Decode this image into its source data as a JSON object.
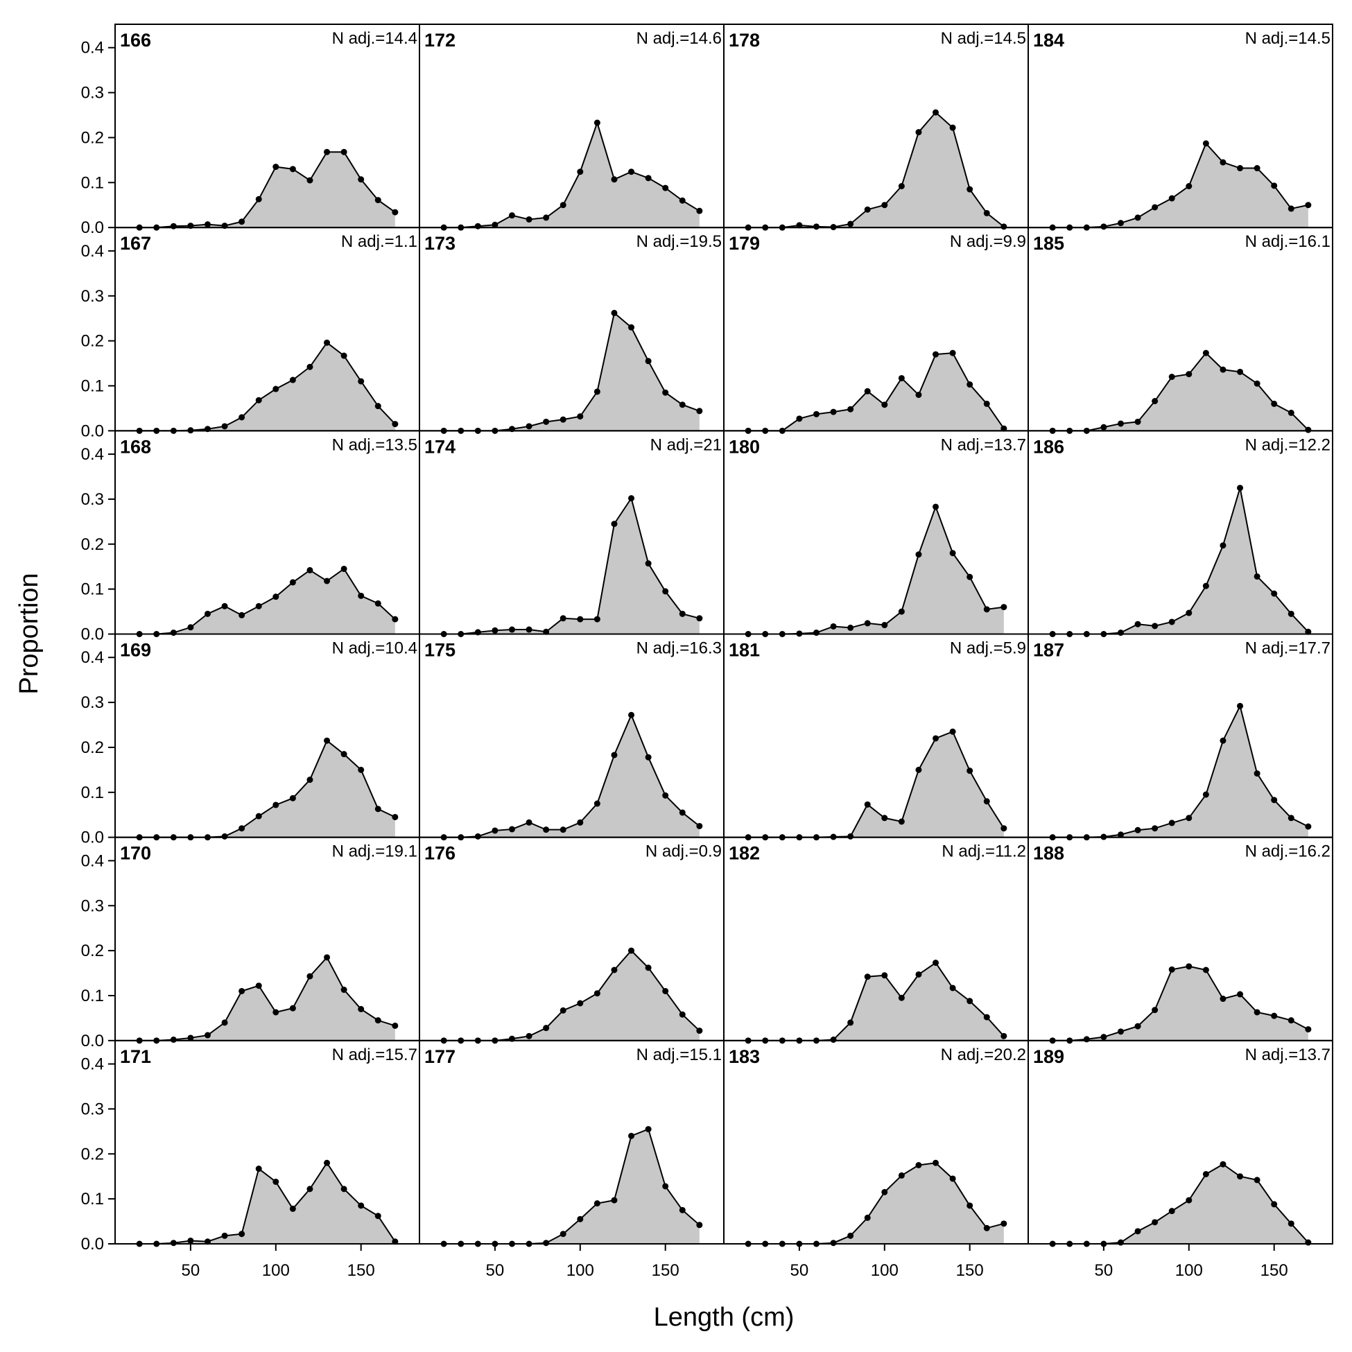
{
  "x_label": "Length (cm)",
  "y_label": "Proportion",
  "chart_data": [
    {
      "type": "area",
      "title": "166",
      "annotation": "N adj.=14.4",
      "x": [
        20,
        30,
        40,
        50,
        60,
        70,
        80,
        90,
        100,
        110,
        120,
        130,
        140,
        150,
        160,
        170
      ],
      "values": [
        0,
        0,
        0.003,
        0.004,
        0.007,
        0.004,
        0.013,
        0.063,
        0.135,
        0.13,
        0.105,
        0.168,
        0.168,
        0.107,
        0.061,
        0.034
      ],
      "xlim": [
        5.7,
        184.3
      ],
      "ylim": [
        0,
        0.452
      ],
      "yticks": [
        {
          "value": 0,
          "label": "0.0"
        },
        0.1,
        0.2,
        0.3,
        0.4
      ]
    },
    {
      "type": "area",
      "title": "167",
      "annotation": "N adj.=1.1",
      "x": [
        20,
        30,
        40,
        50,
        60,
        70,
        80,
        90,
        100,
        110,
        120,
        130,
        140,
        150,
        160,
        170
      ],
      "values": [
        0,
        0,
        0,
        0.001,
        0.004,
        0.01,
        0.03,
        0.068,
        0.093,
        0.113,
        0.142,
        0.196,
        0.167,
        0.11,
        0.055,
        0.015
      ],
      "xlim": [
        5.7,
        184.3
      ],
      "ylim": [
        0,
        0.452
      ],
      "yticks": [
        {
          "value": 0,
          "label": "0.0"
        },
        0.1,
        0.2,
        0.3,
        0.4
      ]
    },
    {
      "type": "area",
      "title": "168",
      "annotation": "N adj.=13.5",
      "x": [
        20,
        30,
        40,
        50,
        60,
        70,
        80,
        90,
        100,
        110,
        120,
        130,
        140,
        150,
        160,
        170
      ],
      "values": [
        0,
        0,
        0.003,
        0.015,
        0.045,
        0.062,
        0.042,
        0.062,
        0.083,
        0.115,
        0.142,
        0.118,
        0.145,
        0.085,
        0.068,
        0.033
      ],
      "xlim": [
        5.7,
        184.3
      ],
      "ylim": [
        0,
        0.452
      ],
      "yticks": [
        {
          "value": 0,
          "label": "0.0"
        },
        0.1,
        0.2,
        0.3,
        0.4
      ]
    },
    {
      "type": "area",
      "title": "169",
      "annotation": "N adj.=10.4",
      "x": [
        20,
        30,
        40,
        50,
        60,
        70,
        80,
        90,
        100,
        110,
        120,
        130,
        140,
        150,
        160,
        170
      ],
      "values": [
        0,
        0,
        0,
        0,
        0,
        0.002,
        0.02,
        0.047,
        0.072,
        0.087,
        0.128,
        0.215,
        0.185,
        0.15,
        0.063,
        0.045
      ],
      "xlim": [
        5.7,
        184.3
      ],
      "ylim": [
        0,
        0.452
      ],
      "yticks": [
        {
          "value": 0,
          "label": "0.0"
        },
        0.1,
        0.2,
        0.3,
        0.4
      ]
    },
    {
      "type": "area",
      "title": "170",
      "annotation": "N adj.=19.1",
      "x": [
        20,
        30,
        40,
        50,
        60,
        70,
        80,
        90,
        100,
        110,
        120,
        130,
        140,
        150,
        160,
        170
      ],
      "values": [
        0,
        0,
        0.002,
        0.006,
        0.012,
        0.04,
        0.11,
        0.122,
        0.063,
        0.072,
        0.143,
        0.185,
        0.113,
        0.07,
        0.045,
        0.033
      ],
      "xlim": [
        5.7,
        184.3
      ],
      "ylim": [
        0,
        0.452
      ],
      "yticks": [
        {
          "value": 0,
          "label": "0.0"
        },
        0.1,
        0.2,
        0.3,
        0.4
      ]
    },
    {
      "type": "area",
      "title": "171",
      "annotation": "N adj.=15.7",
      "x": [
        20,
        30,
        40,
        50,
        60,
        70,
        80,
        90,
        100,
        110,
        120,
        130,
        140,
        150,
        160,
        170
      ],
      "values": [
        0,
        0,
        0.002,
        0.007,
        0.005,
        0.018,
        0.022,
        0.167,
        0.138,
        0.078,
        0.122,
        0.18,
        0.122,
        0.085,
        0.062,
        0.005
      ],
      "xlim": [
        5.7,
        184.3
      ],
      "ylim": [
        0,
        0.452
      ],
      "yticks": [
        {
          "value": 0,
          "label": "0.0"
        },
        0.1,
        0.2,
        0.3,
        0.4
      ],
      "xticks": [
        50,
        100,
        150
      ]
    },
    {
      "type": "area",
      "title": "172",
      "annotation": "N adj.=14.6",
      "x": [
        20,
        30,
        40,
        50,
        60,
        70,
        80,
        90,
        100,
        110,
        120,
        130,
        140,
        150,
        160,
        170
      ],
      "values": [
        0,
        0,
        0.003,
        0.006,
        0.027,
        0.018,
        0.022,
        0.05,
        0.124,
        0.233,
        0.107,
        0.124,
        0.11,
        0.088,
        0.06,
        0.037
      ],
      "xlim": [
        5.7,
        184.3
      ],
      "ylim": [
        0,
        0.452
      ]
    },
    {
      "type": "area",
      "title": "173",
      "annotation": "N adj.=19.5",
      "x": [
        20,
        30,
        40,
        50,
        60,
        70,
        80,
        90,
        100,
        110,
        120,
        130,
        140,
        150,
        160,
        170
      ],
      "values": [
        0,
        0,
        0,
        0,
        0.004,
        0.01,
        0.02,
        0.025,
        0.032,
        0.087,
        0.262,
        0.23,
        0.155,
        0.085,
        0.058,
        0.044
      ],
      "xlim": [
        5.7,
        184.3
      ],
      "ylim": [
        0,
        0.452
      ]
    },
    {
      "type": "area",
      "title": "174",
      "annotation": "N adj.=21",
      "x": [
        20,
        30,
        40,
        50,
        60,
        70,
        80,
        90,
        100,
        110,
        120,
        130,
        140,
        150,
        160,
        170
      ],
      "values": [
        0,
        0,
        0.004,
        0.008,
        0.01,
        0.01,
        0.005,
        0.035,
        0.033,
        0.033,
        0.245,
        0.302,
        0.157,
        0.095,
        0.045,
        0.035
      ],
      "xlim": [
        5.7,
        184.3
      ],
      "ylim": [
        0,
        0.452
      ]
    },
    {
      "type": "area",
      "title": "175",
      "annotation": "N adj.=16.3",
      "x": [
        20,
        30,
        40,
        50,
        60,
        70,
        80,
        90,
        100,
        110,
        120,
        130,
        140,
        150,
        160,
        170
      ],
      "values": [
        0,
        0,
        0.002,
        0.015,
        0.018,
        0.033,
        0.017,
        0.017,
        0.033,
        0.075,
        0.183,
        0.272,
        0.178,
        0.093,
        0.055,
        0.025
      ],
      "xlim": [
        5.7,
        184.3
      ],
      "ylim": [
        0,
        0.452
      ]
    },
    {
      "type": "area",
      "title": "176",
      "annotation": "N adj.=0.9",
      "x": [
        20,
        30,
        40,
        50,
        60,
        70,
        80,
        90,
        100,
        110,
        120,
        130,
        140,
        150,
        160,
        170
      ],
      "values": [
        0,
        0,
        0,
        0,
        0.004,
        0.01,
        0.028,
        0.067,
        0.083,
        0.105,
        0.157,
        0.2,
        0.162,
        0.11,
        0.058,
        0.022
      ],
      "xlim": [
        5.7,
        184.3
      ],
      "ylim": [
        0,
        0.452
      ]
    },
    {
      "type": "area",
      "title": "177",
      "annotation": "N adj.=15.1",
      "x": [
        20,
        30,
        40,
        50,
        60,
        70,
        80,
        90,
        100,
        110,
        120,
        130,
        140,
        150,
        160,
        170
      ],
      "values": [
        0,
        0,
        0,
        0,
        0,
        0,
        0.002,
        0.022,
        0.055,
        0.09,
        0.097,
        0.24,
        0.255,
        0.128,
        0.075,
        0.042
      ],
      "xlim": [
        5.7,
        184.3
      ],
      "ylim": [
        0,
        0.452
      ],
      "xticks": [
        50,
        100,
        150
      ]
    },
    {
      "type": "area",
      "title": "178",
      "annotation": "N adj.=14.5",
      "x": [
        20,
        30,
        40,
        50,
        60,
        70,
        80,
        90,
        100,
        110,
        120,
        130,
        140,
        150,
        160,
        170
      ],
      "values": [
        0,
        0,
        0,
        0.005,
        0.002,
        0.001,
        0.008,
        0.04,
        0.05,
        0.092,
        0.212,
        0.256,
        0.222,
        0.085,
        0.032,
        0.002
      ],
      "xlim": [
        5.7,
        184.3
      ],
      "ylim": [
        0,
        0.452
      ]
    },
    {
      "type": "area",
      "title": "179",
      "annotation": "N adj.=9.9",
      "x": [
        20,
        30,
        40,
        50,
        60,
        70,
        80,
        90,
        100,
        110,
        120,
        130,
        140,
        150,
        160,
        170
      ],
      "values": [
        0,
        0,
        0,
        0.027,
        0.037,
        0.042,
        0.048,
        0.088,
        0.058,
        0.117,
        0.08,
        0.17,
        0.173,
        0.103,
        0.06,
        0.005
      ],
      "xlim": [
        5.7,
        184.3
      ],
      "ylim": [
        0,
        0.452
      ]
    },
    {
      "type": "area",
      "title": "180",
      "annotation": "N adj.=13.7",
      "x": [
        20,
        30,
        40,
        50,
        60,
        70,
        80,
        90,
        100,
        110,
        120,
        130,
        140,
        150,
        160,
        170
      ],
      "values": [
        0,
        0,
        0,
        0.001,
        0.003,
        0.017,
        0.014,
        0.024,
        0.02,
        0.05,
        0.177,
        0.283,
        0.18,
        0.127,
        0.055,
        0.06
      ],
      "xlim": [
        5.7,
        184.3
      ],
      "ylim": [
        0,
        0.452
      ]
    },
    {
      "type": "area",
      "title": "181",
      "annotation": "N adj.=5.9",
      "x": [
        20,
        30,
        40,
        50,
        60,
        70,
        80,
        90,
        100,
        110,
        120,
        130,
        140,
        150,
        160,
        170
      ],
      "values": [
        0,
        0,
        0,
        0,
        0,
        0.001,
        0.002,
        0.073,
        0.043,
        0.035,
        0.15,
        0.22,
        0.235,
        0.148,
        0.08,
        0.02
      ],
      "xlim": [
        5.7,
        184.3
      ],
      "ylim": [
        0,
        0.452
      ]
    },
    {
      "type": "area",
      "title": "182",
      "annotation": "N adj.=11.2",
      "x": [
        20,
        30,
        40,
        50,
        60,
        70,
        80,
        90,
        100,
        110,
        120,
        130,
        140,
        150,
        160,
        170
      ],
      "values": [
        0,
        0,
        0,
        0,
        0,
        0.002,
        0.04,
        0.142,
        0.145,
        0.095,
        0.147,
        0.173,
        0.117,
        0.088,
        0.052,
        0.01
      ],
      "xlim": [
        5.7,
        184.3
      ],
      "ylim": [
        0,
        0.452
      ]
    },
    {
      "type": "area",
      "title": "183",
      "annotation": "N adj.=20.2",
      "x": [
        20,
        30,
        40,
        50,
        60,
        70,
        80,
        90,
        100,
        110,
        120,
        130,
        140,
        150,
        160,
        170
      ],
      "values": [
        0,
        0,
        0,
        0,
        0,
        0.002,
        0.018,
        0.058,
        0.115,
        0.152,
        0.175,
        0.18,
        0.145,
        0.085,
        0.035,
        0.045
      ],
      "xlim": [
        5.7,
        184.3
      ],
      "ylim": [
        0,
        0.452
      ],
      "xticks": [
        50,
        100,
        150
      ]
    },
    {
      "type": "area",
      "title": "184",
      "annotation": "N adj.=14.5",
      "x": [
        20,
        30,
        40,
        50,
        60,
        70,
        80,
        90,
        100,
        110,
        120,
        130,
        140,
        150,
        160,
        170
      ],
      "values": [
        0,
        0,
        0,
        0.002,
        0.01,
        0.022,
        0.045,
        0.065,
        0.092,
        0.187,
        0.145,
        0.132,
        0.132,
        0.093,
        0.042,
        0.05
      ],
      "xlim": [
        5.7,
        184.3
      ],
      "ylim": [
        0,
        0.452
      ]
    },
    {
      "type": "area",
      "title": "185",
      "annotation": "N adj.=16.1",
      "x": [
        20,
        30,
        40,
        50,
        60,
        70,
        80,
        90,
        100,
        110,
        120,
        130,
        140,
        150,
        160,
        170
      ],
      "values": [
        0,
        0,
        0,
        0.008,
        0.016,
        0.02,
        0.066,
        0.12,
        0.126,
        0.173,
        0.136,
        0.131,
        0.105,
        0.06,
        0.04,
        0.002
      ],
      "xlim": [
        5.7,
        184.3
      ],
      "ylim": [
        0,
        0.452
      ]
    },
    {
      "type": "area",
      "title": "186",
      "annotation": "N adj.=12.2",
      "x": [
        20,
        30,
        40,
        50,
        60,
        70,
        80,
        90,
        100,
        110,
        120,
        130,
        140,
        150,
        160,
        170
      ],
      "values": [
        0,
        0,
        0,
        0,
        0.003,
        0.022,
        0.018,
        0.027,
        0.047,
        0.107,
        0.197,
        0.325,
        0.128,
        0.09,
        0.045,
        0.005
      ],
      "xlim": [
        5.7,
        184.3
      ],
      "ylim": [
        0,
        0.452
      ]
    },
    {
      "type": "area",
      "title": "187",
      "annotation": "N adj.=17.7",
      "x": [
        20,
        30,
        40,
        50,
        60,
        70,
        80,
        90,
        100,
        110,
        120,
        130,
        140,
        150,
        160,
        170
      ],
      "values": [
        0,
        0,
        0,
        0.001,
        0.006,
        0.016,
        0.02,
        0.032,
        0.043,
        0.095,
        0.215,
        0.292,
        0.142,
        0.083,
        0.043,
        0.024
      ],
      "xlim": [
        5.7,
        184.3
      ],
      "ylim": [
        0,
        0.452
      ]
    },
    {
      "type": "area",
      "title": "188",
      "annotation": "N adj.=16.2",
      "x": [
        20,
        30,
        40,
        50,
        60,
        70,
        80,
        90,
        100,
        110,
        120,
        130,
        140,
        150,
        160,
        170
      ],
      "values": [
        0,
        0,
        0.003,
        0.008,
        0.02,
        0.032,
        0.068,
        0.158,
        0.165,
        0.157,
        0.093,
        0.103,
        0.063,
        0.055,
        0.045,
        0.025
      ],
      "xlim": [
        5.7,
        184.3
      ],
      "ylim": [
        0,
        0.452
      ]
    },
    {
      "type": "area",
      "title": "189",
      "annotation": "N adj.=13.7",
      "x": [
        20,
        30,
        40,
        50,
        60,
        70,
        80,
        90,
        100,
        110,
        120,
        130,
        140,
        150,
        160,
        170
      ],
      "values": [
        0,
        0,
        0,
        0,
        0.003,
        0.028,
        0.048,
        0.073,
        0.097,
        0.155,
        0.177,
        0.15,
        0.142,
        0.088,
        0.045,
        0.003
      ],
      "xlim": [
        5.7,
        184.3
      ],
      "ylim": [
        0,
        0.452
      ],
      "xticks": [
        50,
        100,
        150
      ]
    }
  ]
}
